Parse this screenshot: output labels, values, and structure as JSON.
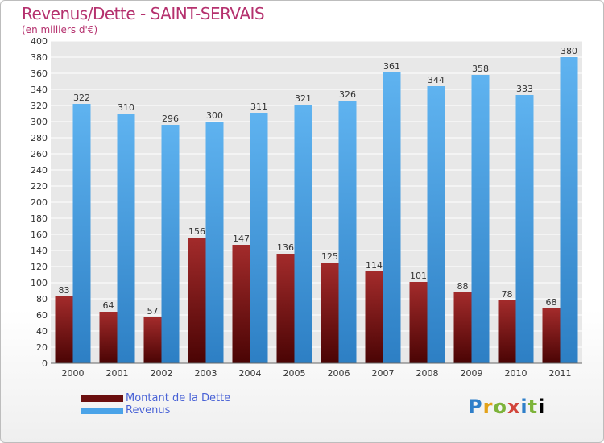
{
  "header": {
    "title": "Revenus/Dette - SAINT-SERVAIS",
    "subtitle": "(en milliers d'€)"
  },
  "logo": {
    "text": "Proxiti",
    "icon": "proxiti-logo"
  },
  "chart_data": {
    "type": "bar",
    "categories": [
      "2000",
      "2001",
      "2002",
      "2003",
      "2004",
      "2005",
      "2006",
      "2007",
      "2008",
      "2009",
      "2010",
      "2011"
    ],
    "series": [
      {
        "name": "Montant de la Dette",
        "values": [
          83,
          64,
          57,
          156,
          147,
          136,
          125,
          114,
          101,
          88,
          78,
          68
        ],
        "color": "#7a1414"
      },
      {
        "name": "Revenus",
        "values": [
          322,
          310,
          296,
          300,
          311,
          321,
          326,
          361,
          344,
          358,
          333,
          380
        ],
        "color": "#4aa3e8"
      }
    ],
    "ylim": [
      0,
      400
    ],
    "yticks": [
      0,
      20,
      40,
      60,
      80,
      100,
      120,
      140,
      160,
      180,
      200,
      220,
      240,
      260,
      280,
      300,
      320,
      340,
      360,
      380,
      400
    ],
    "grid": true,
    "legend": "bottom-left"
  }
}
